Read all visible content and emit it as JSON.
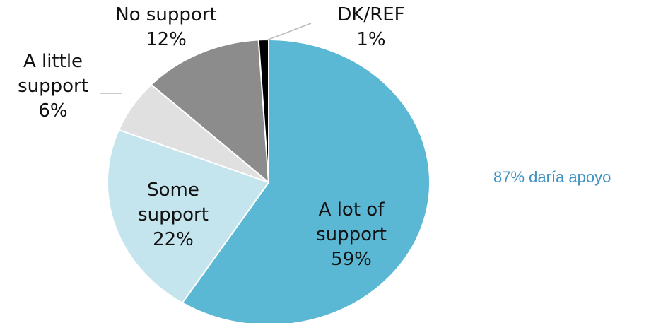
{
  "chart_data": {
    "type": "pie",
    "categories": [
      "A lot of support",
      "Some support",
      "A little support",
      "No support",
      "DK/REF"
    ],
    "values": [
      59,
      22,
      6,
      12,
      1
    ],
    "value_labels": [
      "59%",
      "22%",
      "6%",
      "12%",
      "1%"
    ],
    "colors": [
      "#5bb8d4",
      "#c4e4ee",
      "#e0e0e0",
      "#8c8c8c",
      "#000000"
    ],
    "annotation": "87% daría apoyo"
  }
}
